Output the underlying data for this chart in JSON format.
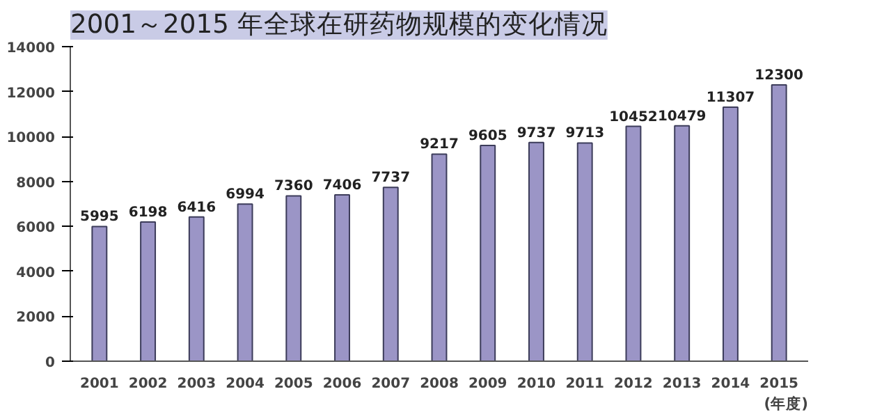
{
  "chart_data": {
    "type": "bar",
    "title": "2001～2015 年全球在研药物规模的变化情况",
    "xlabel": "(年度)",
    "categories": [
      "2001",
      "2002",
      "2003",
      "2004",
      "2005",
      "2006",
      "2007",
      "2008",
      "2009",
      "2010",
      "2011",
      "2012",
      "2013",
      "2014",
      "2015"
    ],
    "values": [
      5995,
      6198,
      6416,
      6994,
      7360,
      7406,
      7737,
      9217,
      9605,
      9737,
      9713,
      10452,
      10479,
      11307,
      12300
    ],
    "color": "#9b95c6",
    "ylim": [
      0,
      14000
    ],
    "yticks": [
      0,
      2000,
      4000,
      6000,
      8000,
      10000,
      12000,
      14000
    ],
    "data_labels": true,
    "grid": false
  }
}
